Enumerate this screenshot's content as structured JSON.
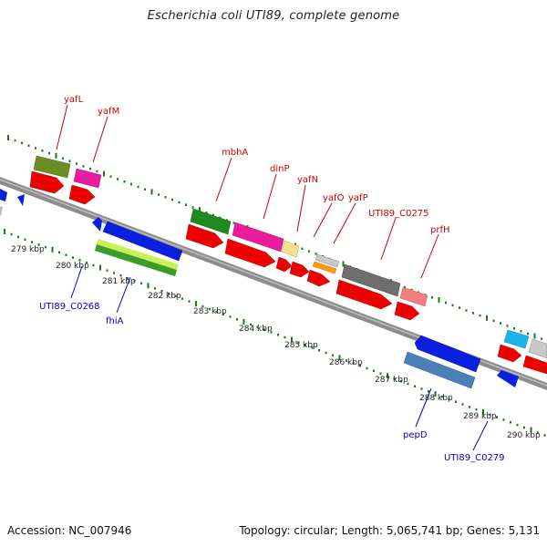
{
  "title": "Escherichia coli UTI89, complete genome",
  "footer": {
    "accession": "Accession: NC_007946",
    "summary": "Topology: circular; Length: 5,065,741 bp; Genes: 5,131"
  },
  "colors": {
    "backbone": "#8c8c8c",
    "tick": "#1a7a1a",
    "label_top": "#cc0000",
    "label_bottom": "#0000cc",
    "cds": "#ee0000",
    "blue_gene": "#0a1fe0"
  },
  "ruler": [
    {
      "label": "279 kbp"
    },
    {
      "label": "280 kbp"
    },
    {
      "label": "281 kbp"
    },
    {
      "label": "282 kbp"
    },
    {
      "label": "283 kbp"
    },
    {
      "label": "284 kbp"
    },
    {
      "label": "285 kbp"
    },
    {
      "label": "286 kbp"
    },
    {
      "label": "287 kbp"
    },
    {
      "label": "288 kbp"
    },
    {
      "label": "289 kbp"
    },
    {
      "label": "290 kbp"
    }
  ],
  "genes_top": [
    {
      "name": "yafL"
    },
    {
      "name": "yafM"
    },
    {
      "name": "mbhA"
    },
    {
      "name": "dinP"
    },
    {
      "name": "yafN"
    },
    {
      "name": "yafO"
    },
    {
      "name": "yafP"
    },
    {
      "name": "UTI89_C0275"
    },
    {
      "name": "prfH"
    }
  ],
  "genes_bottom": [
    {
      "name": "UTI89_C0268"
    },
    {
      "name": "fhiA"
    },
    {
      "name": "pepD"
    },
    {
      "name": "UTI89_C0279"
    }
  ]
}
